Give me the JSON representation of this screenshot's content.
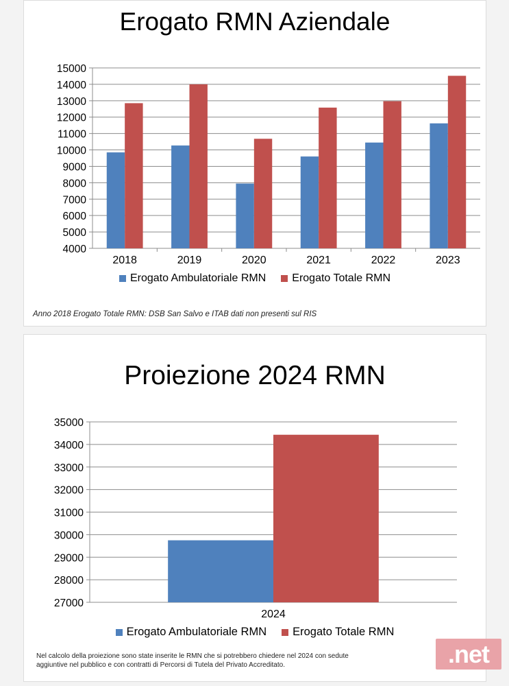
{
  "colors": {
    "series_ambulatoriale": "#4f81bd",
    "series_totale": "#c0504d",
    "grid": "#8c8c8c"
  },
  "chart_data": [
    {
      "type": "bar",
      "title": "Erogato RMN Aziendale",
      "categories": [
        "2018",
        "2019",
        "2020",
        "2021",
        "2022",
        "2023"
      ],
      "series": [
        {
          "name": "Erogato Ambulatoriale RMN",
          "values": [
            9850,
            10270,
            7950,
            9600,
            10450,
            11620
          ]
        },
        {
          "name": "Erogato Totale RMN",
          "values": [
            12850,
            14000,
            10680,
            12580,
            12970,
            14520
          ]
        }
      ],
      "ylim": [
        4000,
        15000
      ],
      "yticks": [
        "4000",
        "5000",
        "6000",
        "7000",
        "8000",
        "9000",
        "10000",
        "11000",
        "12000",
        "13000",
        "14000",
        "15000"
      ],
      "grid": true,
      "legend": "bottom",
      "note": "Anno 2018 Erogato Totale RMN: DSB San Salvo e ITAB dati non presenti sul RIS"
    },
    {
      "type": "bar",
      "title": "Proiezione 2024 RMN",
      "categories": [
        "2024"
      ],
      "series": [
        {
          "name": "Erogato Ambulatoriale RMN",
          "values": [
            29750
          ]
        },
        {
          "name": "Erogato Totale RMN",
          "values": [
            34430
          ]
        }
      ],
      "ylim": [
        27000,
        35000
      ],
      "yticks": [
        "27000",
        "28000",
        "29000",
        "30000",
        "31000",
        "32000",
        "33000",
        "34000",
        "35000"
      ],
      "grid": true,
      "legend": "bottom",
      "note": "Nel calcolo della proiezione sono state inserite le RMN che si potrebbero chiedere nel 2024 con sedute aggiuntive nel pubblico e con contratti di Percorsi di Tutela del Privato Accreditato."
    }
  ],
  "watermark": ".net"
}
